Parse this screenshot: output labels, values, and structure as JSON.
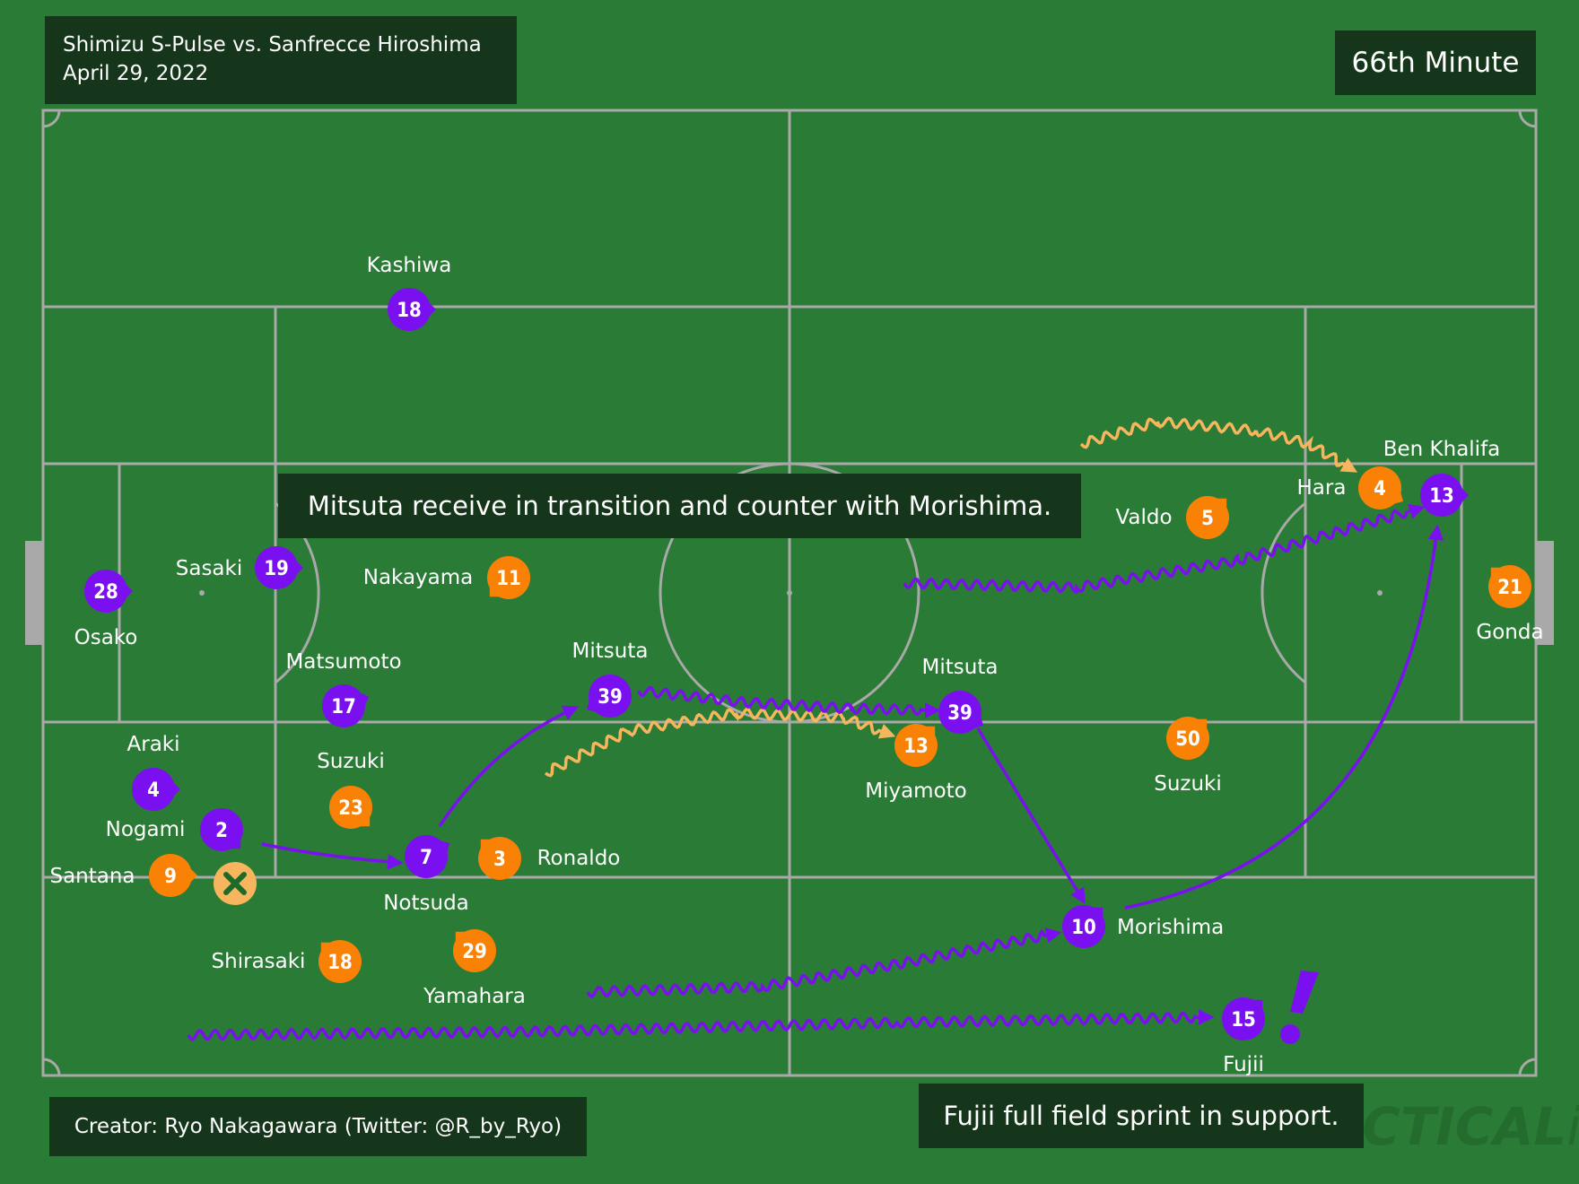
{
  "header": {
    "match": "Shimizu S-Pulse vs. Sanfrecce Hiroshima",
    "date": "April 29, 2022",
    "minute": "66th Minute"
  },
  "annotations": {
    "transition": "Mitsuta receive in transition and counter with Morishima.",
    "sprint": "Fujii full field sprint in support."
  },
  "credit": "Creator: Ryo Nakagawara (Twitter: @R_by_Ryo)",
  "watermark": "TACTICALista",
  "colors": {
    "pitch": "#2a7b35",
    "lines": "#a9a9a9",
    "hiroshima": "#7a10ef",
    "shimizu": "#f98206",
    "shimizu_light": "#f7b65d",
    "box": "#15361b"
  },
  "players": [
    {
      "team": "hiroshima",
      "number": "18",
      "name": "Kashiwa"
    },
    {
      "team": "hiroshima",
      "number": "28",
      "name": "Osako"
    },
    {
      "team": "hiroshima",
      "number": "19",
      "name": "Sasaki"
    },
    {
      "team": "hiroshima",
      "number": "17",
      "name": "Matsumoto"
    },
    {
      "team": "hiroshima",
      "number": "4",
      "name": "Araki"
    },
    {
      "team": "hiroshima",
      "number": "2",
      "name": "Nogami"
    },
    {
      "team": "hiroshima",
      "number": "7",
      "name": "Notsuda"
    },
    {
      "team": "hiroshima",
      "number": "39",
      "name": "Mitsuta"
    },
    {
      "team": "hiroshima",
      "number": "39",
      "name": "Mitsuta"
    },
    {
      "team": "hiroshima",
      "number": "10",
      "name": "Morishima"
    },
    {
      "team": "hiroshima",
      "number": "15",
      "name": "Fujii"
    },
    {
      "team": "hiroshima",
      "number": "13",
      "name": "Ben Khalifa"
    },
    {
      "team": "shimizu",
      "number": "11",
      "name": "Nakayama"
    },
    {
      "team": "shimizu",
      "number": "23",
      "name": "Suzuki"
    },
    {
      "team": "shimizu",
      "number": "9",
      "name": "Santana"
    },
    {
      "team": "shimizu",
      "number": "3",
      "name": "Ronaldo"
    },
    {
      "team": "shimizu",
      "number": "18",
      "name": "Shirasaki"
    },
    {
      "team": "shimizu",
      "number": "29",
      "name": "Yamahara"
    },
    {
      "team": "shimizu",
      "number": "13",
      "name": "Miyamoto"
    },
    {
      "team": "shimizu",
      "number": "50",
      "name": "Suzuki"
    },
    {
      "team": "shimizu",
      "number": "5",
      "name": "Valdo"
    },
    {
      "team": "shimizu",
      "number": "4",
      "name": "Hara"
    },
    {
      "team": "shimizu",
      "number": "21",
      "name": "Gonda"
    }
  ]
}
